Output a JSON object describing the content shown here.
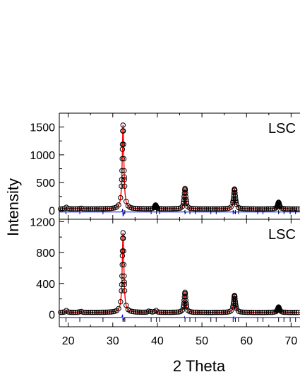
{
  "chart_data": {
    "type": "line",
    "xlabel": "2 Theta",
    "ylabel": "Intensity",
    "xlim": [
      18,
      72
    ],
    "x_ticks": [
      "20",
      "30",
      "40",
      "50",
      "60",
      "70"
    ],
    "colors": {
      "observed": "#000000",
      "calculated": "#ff0000",
      "difference": "#0000ff",
      "bragg_ticks": "#000000"
    },
    "panels": [
      {
        "label": "LSC",
        "ylim": [
          -160,
          1750
        ],
        "y_ticks": [
          "0",
          "500",
          "1000",
          "1500"
        ],
        "background": 25,
        "peaks": [
          {
            "x": 19.6,
            "height": 30,
            "width": 0.25
          },
          {
            "x": 22.8,
            "height": 15,
            "width": 0.25
          },
          {
            "x": 32.3,
            "height": 1510,
            "width": 0.22
          },
          {
            "x": 39.6,
            "height": 70,
            "width": 0.22
          },
          {
            "x": 46.2,
            "height": 370,
            "width": 0.22
          },
          {
            "x": 57.3,
            "height": 360,
            "width": 0.25
          },
          {
            "x": 67.2,
            "height": 120,
            "width": 0.25
          }
        ],
        "difference_baseline": -30,
        "bragg_positions": [
          19.5,
          22.6,
          27.8,
          32.3,
          32.7,
          38.6,
          39.8,
          40.5,
          46.2,
          47.3,
          48.5,
          52.0,
          53.2,
          57.0,
          57.5,
          58.2,
          62.5,
          63.7,
          67.2,
          68.4,
          69.8,
          71.0
        ]
      },
      {
        "label": "LSC",
        "ylim": [
          -160,
          1230
        ],
        "y_ticks": [
          "0",
          "400",
          "800",
          "1200"
        ],
        "background": 25,
        "peaks": [
          {
            "x": 19.6,
            "height": 25,
            "width": 0.25
          },
          {
            "x": 22.8,
            "height": 15,
            "width": 0.25
          },
          {
            "x": 32.3,
            "height": 1030,
            "width": 0.22
          },
          {
            "x": 38.2,
            "height": 20,
            "width": 0.25
          },
          {
            "x": 39.6,
            "height": 30,
            "width": 0.22
          },
          {
            "x": 46.2,
            "height": 260,
            "width": 0.22
          },
          {
            "x": 57.3,
            "height": 220,
            "width": 0.25
          },
          {
            "x": 67.2,
            "height": 70,
            "width": 0.25
          }
        ],
        "difference_baseline": -40,
        "bragg_positions": [
          19.5,
          22.6,
          27.8,
          32.3,
          32.7,
          38.6,
          39.8,
          40.5,
          46.2,
          47.3,
          48.5,
          52.0,
          53.2,
          57.0,
          57.5,
          58.2,
          62.5,
          63.7,
          67.2,
          68.4,
          69.8,
          71.0
        ]
      }
    ]
  }
}
